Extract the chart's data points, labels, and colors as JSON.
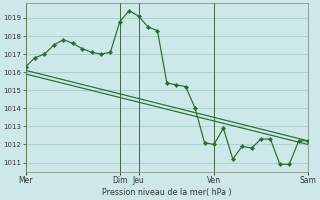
{
  "bg_color": "#cce8e8",
  "grid_color": "#aacccc",
  "line_color": "#2d6a2d",
  "marker_color": "#2d6a2d",
  "vline_color": "#446644",
  "ylabel": "Pression niveau de la mer( hPa )",
  "ylim": [
    1010.5,
    1019.8
  ],
  "yticks": [
    1011,
    1012,
    1013,
    1014,
    1015,
    1016,
    1017,
    1018,
    1019
  ],
  "ytick_fontsize": 5.0,
  "xtick_positions": [
    0,
    5,
    6,
    10,
    15
  ],
  "xtick_labels": [
    "Mer",
    "Dim",
    "Jeu",
    "Ven",
    "Sam"
  ],
  "xtick_fontsize": 5.5,
  "xlabel_fontsize": 5.8,
  "vlines_x": [
    0,
    5,
    6,
    10,
    15
  ],
  "xlim": [
    0,
    15
  ],
  "line1_x": [
    0,
    0.5,
    1,
    1.5,
    2,
    2.5,
    3,
    3.5,
    4,
    4.5,
    5,
    5.5,
    6,
    6.5,
    7,
    7.5,
    8,
    8.5,
    9,
    9.5,
    10,
    10.5,
    11,
    11.5,
    12,
    12.5,
    13,
    13.5,
    14,
    14.5,
    15
  ],
  "line1_y": [
    1016.3,
    1016.8,
    1017.0,
    1017.5,
    1017.8,
    1017.6,
    1017.3,
    1017.1,
    1017.0,
    1017.1,
    1018.8,
    1019.4,
    1019.1,
    1018.5,
    1018.3,
    1015.4,
    1015.3,
    1015.2,
    1014.0,
    1012.1,
    1012.0,
    1012.9,
    1011.2,
    1011.9,
    1011.8,
    1012.3,
    1012.3,
    1010.9,
    1010.9,
    1012.2,
    1012.2
  ],
  "line2_x": [
    0,
    15
  ],
  "line2_y": [
    1016.1,
    1012.2
  ],
  "line3_x": [
    0,
    15
  ],
  "line3_y": [
    1015.9,
    1012.0
  ],
  "figsize": [
    3.2,
    2.0
  ],
  "dpi": 100
}
